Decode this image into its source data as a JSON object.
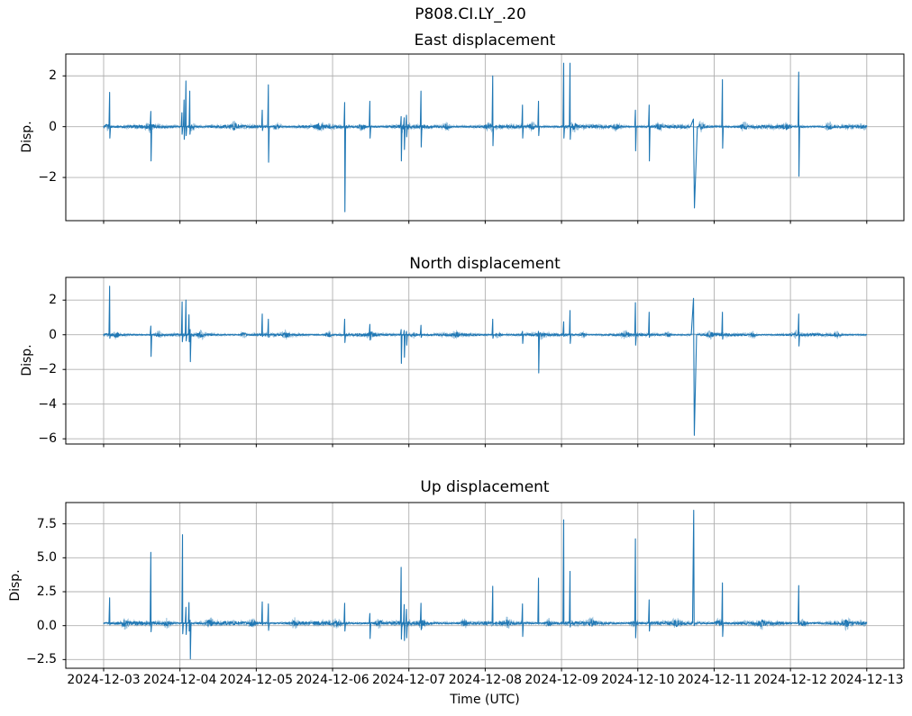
{
  "figure": {
    "suptitle": "P808.CI.LY_.20",
    "background_color": "#ffffff",
    "line_color": "#1f77b4",
    "grid_color": "#b0b0b0",
    "axis_color": "#000000"
  },
  "x_axis": {
    "label": "Time (UTC)",
    "tick_labels": [
      "2024-12-03",
      "2024-12-04",
      "2024-12-05",
      "2024-12-06",
      "2024-12-07",
      "2024-12-08",
      "2024-12-09",
      "2024-12-10",
      "2024-12-11",
      "2024-12-12",
      "2024-12-13"
    ],
    "start_date": "2024-12-03",
    "days_span": 10
  },
  "chart_data": [
    {
      "type": "line",
      "series_name": "east",
      "title": "East displacement",
      "ylabel": "Disp.",
      "ytick_values": [
        2,
        0,
        -2
      ],
      "ytick_labels": [
        "2",
        "0",
        "−2"
      ],
      "ylim": [
        -3.7,
        2.86
      ],
      "baseline": 0,
      "noise_amp": 0.06,
      "grid": true,
      "spikes": [
        [
          0.08,
          1.35,
          -0.45
        ],
        [
          0.62,
          0.6,
          -1.35
        ],
        [
          1.027,
          0.55,
          -0.3
        ],
        [
          1.055,
          1.05,
          -0.5
        ],
        [
          1.08,
          1.8,
          -0.35
        ],
        [
          1.13,
          1.4,
          -0.3
        ],
        [
          2.08,
          0.65,
          -0.15
        ],
        [
          2.16,
          1.65,
          -1.4
        ],
        [
          3.16,
          0.95,
          -3.35
        ],
        [
          3.49,
          1.0,
          -0.45
        ],
        [
          3.9,
          0.4,
          -1.35
        ],
        [
          3.94,
          0.35,
          -0.9
        ],
        [
          3.97,
          0.45,
          -0.4
        ],
        [
          4.16,
          1.4,
          -0.8
        ],
        [
          5.1,
          2.0,
          -0.75
        ],
        [
          5.49,
          0.85,
          -0.45
        ],
        [
          5.7,
          1.0,
          -0.35
        ],
        [
          6.03,
          2.5,
          -0.45
        ],
        [
          6.113,
          2.5,
          -0.5
        ],
        [
          6.97,
          0.65,
          -0.95
        ],
        [
          7.15,
          0.85,
          -1.35
        ],
        [
          7.735,
          0.3,
          -3.2,
          0.045
        ],
        [
          8.11,
          1.85,
          -0.85
        ],
        [
          9.11,
          2.15,
          -1.95
        ]
      ]
    },
    {
      "type": "line",
      "series_name": "north",
      "title": "North displacement",
      "ylabel": "Disp.",
      "ytick_values": [
        2,
        0,
        -2,
        -4,
        -6
      ],
      "ytick_labels": [
        "2",
        "0",
        "−2",
        "−4",
        "−6"
      ],
      "ylim": [
        -6.3,
        3.31
      ],
      "baseline": 0,
      "noise_amp": 0.07,
      "grid": true,
      "spikes": [
        [
          0.08,
          2.8,
          -0.2
        ],
        [
          0.62,
          0.5,
          -1.25
        ],
        [
          1.03,
          1.9,
          -0.4
        ],
        [
          1.08,
          2.0,
          -0.35
        ],
        [
          1.12,
          1.15,
          -0.4
        ],
        [
          1.135,
          0.3,
          -1.55
        ],
        [
          2.08,
          1.2,
          -0.1
        ],
        [
          2.16,
          0.9,
          -0.15
        ],
        [
          3.16,
          0.9,
          -0.45
        ],
        [
          3.49,
          0.6,
          -0.3
        ],
        [
          3.9,
          0.3,
          -1.65
        ],
        [
          3.94,
          0.25,
          -1.3
        ],
        [
          3.97,
          0.2,
          -0.6
        ],
        [
          4.16,
          0.55,
          -0.15
        ],
        [
          5.1,
          0.9,
          -0.2
        ],
        [
          5.49,
          0.2,
          -0.5
        ],
        [
          5.7,
          0.2,
          -2.2
        ],
        [
          6.03,
          0.75,
          -0.1
        ],
        [
          6.113,
          1.4,
          -0.5
        ],
        [
          6.97,
          1.85,
          -0.6
        ],
        [
          7.15,
          1.3,
          -0.15
        ],
        [
          7.735,
          2.1,
          -5.8,
          0.035
        ],
        [
          8.11,
          1.3,
          -0.25
        ],
        [
          9.11,
          1.2,
          -0.65
        ]
      ]
    },
    {
      "type": "line",
      "series_name": "up",
      "title": "Up displacement",
      "ylabel": "Disp.",
      "ytick_values": [
        7.5,
        5.0,
        2.5,
        0.0,
        -2.5
      ],
      "ytick_labels": [
        "7.5",
        "5.0",
        "2.5",
        "0.0",
        "−2.5"
      ],
      "ylim": [
        -3.14,
        9.07
      ],
      "baseline": 0.18,
      "noise_amp": 0.12,
      "grid": true,
      "spikes": [
        [
          0.08,
          2.05,
          0.05
        ],
        [
          0.62,
          5.4,
          -0.45
        ],
        [
          1.035,
          6.7,
          -0.6
        ],
        [
          1.08,
          1.35,
          -0.65
        ],
        [
          1.12,
          1.7,
          -0.4
        ],
        [
          1.135,
          0.4,
          -2.45
        ],
        [
          2.08,
          1.75,
          0.05
        ],
        [
          2.16,
          1.6,
          -0.35
        ],
        [
          3.16,
          1.65,
          -0.4
        ],
        [
          3.49,
          0.9,
          -0.95
        ],
        [
          3.9,
          4.3,
          -1.0
        ],
        [
          3.94,
          1.55,
          -1.1
        ],
        [
          3.97,
          1.2,
          -0.9
        ],
        [
          4.16,
          1.65,
          -0.3
        ],
        [
          5.1,
          2.9,
          0.05
        ],
        [
          5.49,
          1.6,
          -0.8
        ],
        [
          5.7,
          3.5,
          0.1
        ],
        [
          6.03,
          7.8,
          0.1
        ],
        [
          6.113,
          4.0,
          -0.1
        ],
        [
          6.97,
          6.4,
          -0.9
        ],
        [
          7.15,
          1.9,
          -0.4
        ],
        [
          7.735,
          8.5,
          0.0,
          0.018
        ],
        [
          8.11,
          3.15,
          -0.8
        ],
        [
          9.11,
          2.95,
          0.05
        ]
      ]
    }
  ]
}
